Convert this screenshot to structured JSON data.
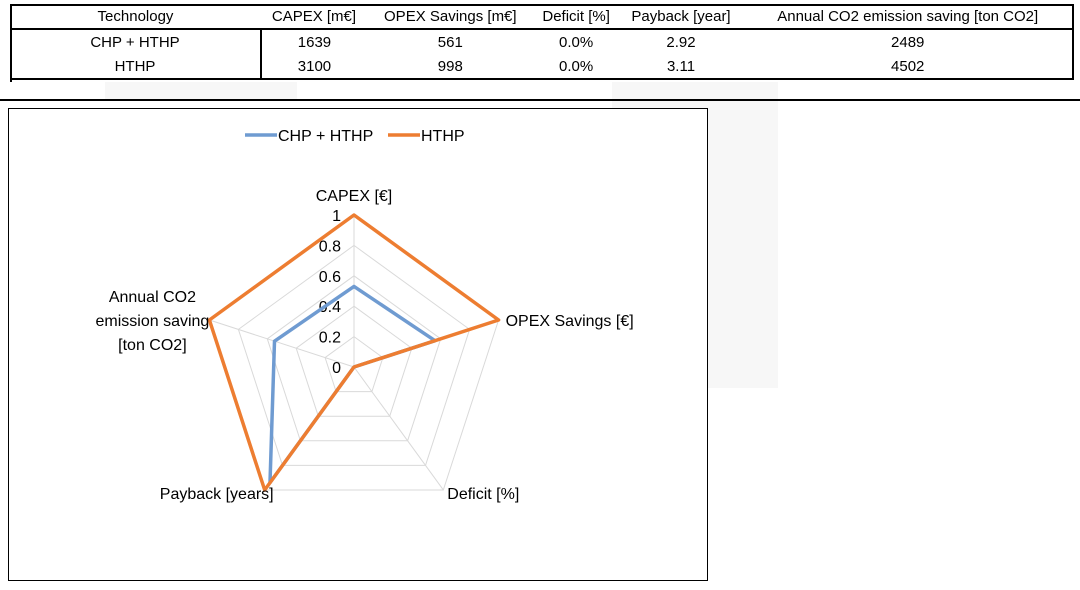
{
  "table": {
    "headers": [
      "Technology",
      "CAPEX [m€]",
      "OPEX Savings [m€]",
      "Deficit [%]",
      "Payback [year]",
      "Annual CO2 emission saving [ton CO2]"
    ],
    "rows": [
      [
        "CHP + HTHP",
        "1639",
        "561",
        "0.0%",
        "2.92",
        "2489"
      ],
      [
        "HTHP",
        "3100",
        "998",
        "0.0%",
        "3.11",
        "4502"
      ]
    ]
  },
  "chart_data": {
    "type": "radar",
    "title": "",
    "axes": [
      "CAPEX [€]",
      "OPEX Savings [€]",
      "Deficit [%]",
      "Payback [years]",
      "Annual CO2 emission saving [ton CO2]"
    ],
    "axis_label_lines": [
      [
        "CAPEX [€]"
      ],
      [
        "OPEX Savings [€]"
      ],
      [
        "Deficit [%]"
      ],
      [
        "Payback [years]"
      ],
      [
        "Annual CO2",
        "emission saving",
        "[ton CO2]"
      ]
    ],
    "range": [
      0,
      1
    ],
    "ticks": [
      0,
      0.2,
      0.4,
      0.6,
      0.8,
      1
    ],
    "tick_labels": [
      "0",
      "0.2",
      "0.4",
      "0.6",
      "0.8",
      "1"
    ],
    "grid": true,
    "legend_position": "top",
    "series": [
      {
        "name": "CHP + HTHP",
        "color": "#6f9bd1",
        "values": [
          0.53,
          0.56,
          0.0,
          0.94,
          0.55
        ]
      },
      {
        "name": "HTHP",
        "color": "#ed7d31",
        "values": [
          1.0,
          1.0,
          0.0,
          1.0,
          1.0
        ]
      }
    ]
  }
}
